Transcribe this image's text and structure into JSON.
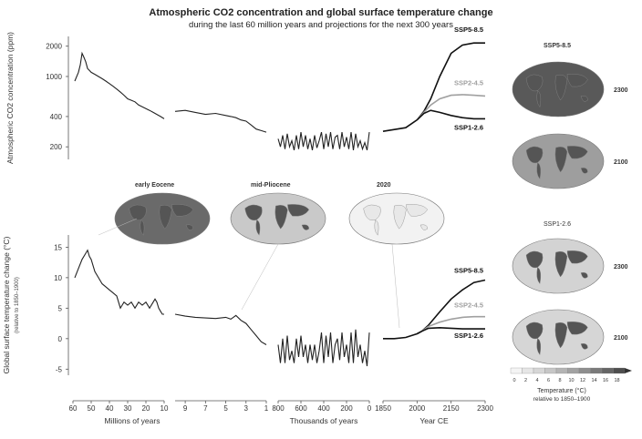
{
  "figure": {
    "title": "Atmospheric CO2 concentration and global surface temperature change",
    "subtitle": "during the last 60 million years and projections for the next 300 years"
  },
  "chart_data": [
    {
      "type": "line",
      "name": "co2",
      "ylabel": "Atmospheric CO2 concentration (ppm)",
      "yticks": [
        2000,
        1000,
        400,
        200
      ],
      "ylim": [
        150,
        2500
      ],
      "log_scale": true,
      "segments": [
        {
          "xlabel": "Millions of years",
          "xticks": [
            60,
            50,
            40,
            30,
            20,
            10
          ],
          "xlim": [
            60,
            10
          ],
          "series": [
            {
              "x": [
                59,
                57,
                56,
                55,
                54,
                53,
                52,
                51,
                50,
                48,
                46,
                44,
                42,
                40,
                38,
                36,
                34,
                32,
                30,
                28,
                26,
                24,
                22,
                20,
                18,
                16,
                14,
                12,
                10
              ],
              "y": [
                900,
                1100,
                1300,
                1700,
                1550,
                1400,
                1200,
                1150,
                1100,
                1050,
                1000,
                950,
                900,
                850,
                800,
                750,
                700,
                650,
                600,
                580,
                560,
                520,
                500,
                480,
                460,
                440,
                420,
                400,
                380
              ]
            }
          ]
        },
        {
          "xlabel": "",
          "xticks": [
            9,
            7,
            5,
            3,
            1
          ],
          "xlim": [
            10,
            1
          ],
          "series": [
            {
              "x": [
                10,
                9,
                8,
                7,
                6,
                5,
                4.5,
                4,
                3.5,
                3,
                2.5,
                2,
                1.5,
                1
              ],
              "y": [
                450,
                460,
                440,
                420,
                430,
                410,
                400,
                390,
                370,
                360,
                330,
                300,
                290,
                280
              ]
            }
          ]
        },
        {
          "xlabel": "Thousands of years",
          "xticks": [
            800,
            600,
            400,
            200,
            0
          ],
          "xlim": [
            800,
            0
          ],
          "series": [
            {
              "x": [
                800,
                780,
                760,
                740,
                720,
                700,
                680,
                660,
                640,
                620,
                600,
                580,
                560,
                540,
                520,
                500,
                480,
                460,
                440,
                420,
                400,
                380,
                360,
                340,
                320,
                300,
                280,
                260,
                240,
                220,
                200,
                180,
                160,
                140,
                120,
                100,
                80,
                60,
                40,
                20,
                0
              ],
              "y": [
                240,
                200,
                260,
                190,
                270,
                200,
                230,
                185,
                260,
                190,
                280,
                200,
                260,
                190,
                240,
                185,
                260,
                195,
                230,
                280,
                190,
                270,
                200,
                280,
                190,
                250,
                260,
                190,
                280,
                200,
                250,
                190,
                280,
                185,
                270,
                200,
                230,
                190,
                220,
                185,
                280
              ]
            }
          ]
        },
        {
          "xlabel": "Year CE",
          "xticks": [
            1850,
            2000,
            2150,
            2300
          ],
          "xlim": [
            1850,
            2300
          ],
          "series": [
            {
              "name": "SSP5-8.5",
              "x": [
                1850,
                1950,
                2000,
                2030,
                2060,
                2100,
                2150,
                2200,
                2250,
                2300
              ],
              "y": [
                285,
                310,
                370,
                450,
                600,
                1000,
                1700,
                2050,
                2150,
                2150
              ]
            },
            {
              "name": "SSP2-4.5",
              "x": [
                2000,
                2030,
                2060,
                2100,
                2150,
                2200,
                2250,
                2300
              ],
              "y": [
                370,
                440,
                520,
                600,
                650,
                660,
                650,
                640
              ]
            },
            {
              "name": "SSP1-2.6",
              "x": [
                2000,
                2030,
                2060,
                2100,
                2150,
                2200,
                2250,
                2300
              ],
              "y": [
                370,
                430,
                460,
                440,
                410,
                390,
                380,
                380
              ]
            }
          ]
        }
      ]
    },
    {
      "type": "line",
      "name": "temperature",
      "ylabel": "Global surface temperature change (°C)",
      "ylabel_sub": "(relative to 1850–1900)",
      "yticks": [
        15,
        10,
        5,
        0,
        -5
      ],
      "ylim": [
        -6,
        17
      ],
      "segments": [
        {
          "xlabel": "Millions of years",
          "xticks": [
            60,
            50,
            40,
            30,
            20,
            10
          ],
          "xlim": [
            60,
            10
          ],
          "series": [
            {
              "x": [
                59,
                57,
                55,
                53,
                52,
                51,
                50,
                48,
                46,
                44,
                42,
                40,
                38,
                36,
                35,
                34,
                33,
                32,
                30,
                28,
                26,
                24,
                22,
                20,
                18,
                16,
                15,
                14,
                13,
                12,
                11,
                10
              ],
              "y": [
                10,
                11.5,
                13,
                14,
                14.5,
                13.5,
                13,
                11,
                10,
                9,
                8.5,
                8,
                7.5,
                7,
                6,
                5,
                5.5,
                6,
                5.5,
                6,
                5,
                6,
                5.5,
                6,
                5,
                6,
                6.5,
                6,
                5,
                4.5,
                4,
                4
              ]
            }
          ]
        },
        {
          "xlabel": "",
          "xticks": [
            9,
            7,
            5,
            3,
            1
          ],
          "xlim": [
            10,
            1
          ],
          "series": [
            {
              "x": [
                10,
                9,
                8,
                7,
                6,
                5,
                4.5,
                4,
                3.5,
                3,
                2.5,
                2,
                1.5,
                1
              ],
              "y": [
                4,
                3.7,
                3.5,
                3.4,
                3.3,
                3.5,
                3.2,
                3.8,
                3,
                2.5,
                1.5,
                0.5,
                -0.5,
                -1
              ]
            }
          ]
        },
        {
          "xlabel": "Thousands of years",
          "xticks": [
            800,
            600,
            400,
            200,
            0
          ],
          "xlim": [
            800,
            0
          ],
          "series": [
            {
              "x": [
                800,
                780,
                760,
                740,
                720,
                700,
                680,
                660,
                640,
                620,
                600,
                580,
                560,
                540,
                520,
                500,
                480,
                460,
                440,
                420,
                400,
                380,
                360,
                340,
                320,
                300,
                280,
                260,
                240,
                220,
                200,
                180,
                160,
                140,
                120,
                100,
                80,
                60,
                40,
                20,
                0
              ],
              "y": [
                -1,
                -4,
                0,
                -4,
                0.5,
                -3.5,
                -2,
                -4,
                0,
                -3,
                0.5,
                -3,
                -1,
                -4,
                -1,
                -3.5,
                -1,
                -4,
                -2,
                1,
                -4,
                0.5,
                -3,
                1,
                -4,
                -1,
                0,
                -3.5,
                1,
                -3,
                -1,
                -4,
                1,
                -4,
                1.5,
                -3,
                -1,
                -4,
                -2,
                -4.5,
                1
              ]
            }
          ]
        },
        {
          "xlabel": "Year CE",
          "xticks": [
            1850,
            2000,
            2150,
            2300
          ],
          "xlim": [
            1850,
            2300
          ],
          "series": [
            {
              "name": "SSP5-8.5",
              "x": [
                1850,
                1900,
                1950,
                2000,
                2020,
                2050,
                2100,
                2150,
                2200,
                2250,
                2300
              ],
              "y": [
                0,
                0,
                0.2,
                0.8,
                1.2,
                2.2,
                4.4,
                6.5,
                8.0,
                9.2,
                9.6
              ]
            },
            {
              "name": "SSP2-4.5",
              "x": [
                2000,
                2020,
                2050,
                2100,
                2150,
                2200,
                2250,
                2300
              ],
              "y": [
                0.8,
                1.2,
                2.0,
                2.7,
                3.2,
                3.5,
                3.6,
                3.6
              ]
            },
            {
              "name": "SSP1-2.6",
              "x": [
                2000,
                2020,
                2050,
                2100,
                2150,
                2200,
                2250,
                2300
              ],
              "y": [
                0.8,
                1.2,
                1.7,
                1.8,
                1.7,
                1.6,
                1.6,
                1.6
              ]
            }
          ]
        }
      ]
    }
  ],
  "maps": {
    "top": [
      {
        "label": "early Eocene",
        "fill": "#6a6a6a"
      },
      {
        "label": "mid-Pliocene",
        "fill": "#c9c9c9"
      },
      {
        "label": "2020",
        "fill": "#f2f2f2"
      }
    ],
    "ssp585_header": "SSP5-8.5",
    "ssp585": [
      {
        "year": "2300",
        "fill": "#595959"
      },
      {
        "year": "2100",
        "fill": "#9e9e9e"
      }
    ],
    "ssp126_header": "SSP1-2.6",
    "ssp126": [
      {
        "year": "2300",
        "fill": "#d3d3d3"
      },
      {
        "year": "2100",
        "fill": "#d6d6d6"
      }
    ]
  },
  "legend": {
    "scale_ticks": [
      "0",
      "2",
      "4",
      "6",
      "8",
      "10",
      "12",
      "14",
      "16",
      "18"
    ],
    "title": "Temperature (°C)",
    "subtitle": "relative to 1850–1900",
    "colors": [
      "#f4f4f4",
      "#e6e6e6",
      "#d6d6d6",
      "#c6c6c6",
      "#b4b4b4",
      "#a2a2a2",
      "#8e8e8e",
      "#7a7a7a",
      "#656565",
      "#4e4e4e"
    ]
  },
  "series_styles": {
    "SSP5-8.5": "#111111",
    "SSP2-4.5": "#a0a0a0",
    "SSP1-2.6": "#111111",
    "history": "#222222"
  }
}
